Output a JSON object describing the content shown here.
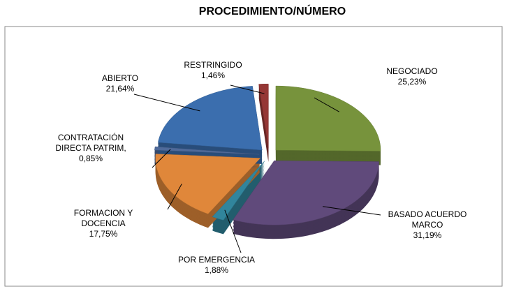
{
  "chart_data": {
    "type": "pie",
    "title": "PROCEDIMIENTO/NÚMERO",
    "categories": [
      "NEGOCIADO",
      "BASADO ACUERDO MARCO",
      "POR EMERGENCIA",
      "FORMACION Y DOCENCIA",
      "CONTRATACIÓN DIRECTA PATRIM,",
      "ABIERTO",
      "RESTRINGIDO"
    ],
    "values": [
      25.23,
      31.19,
      1.88,
      17.75,
      0.85,
      21.64,
      1.46
    ],
    "value_labels": [
      "25,23%",
      "31,19%",
      "1,88%",
      "17,75%",
      "0,85%",
      "21,64%",
      "1,46%"
    ],
    "colors": [
      "#77933c",
      "#604a7b",
      "#31859c",
      "#e0873a",
      "#4f6a9a",
      "#3b6eae",
      "#953735"
    ]
  }
}
